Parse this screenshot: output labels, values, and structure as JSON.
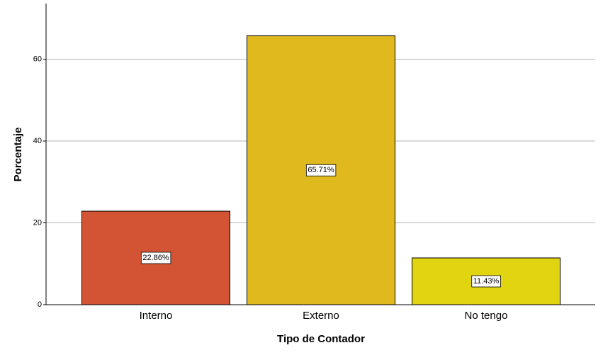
{
  "chart_data": {
    "type": "bar",
    "x_label": "Tipo de Contador",
    "y_label": "Porcentaje",
    "categories": [
      "Interno",
      "Externo",
      "No tengo"
    ],
    "values": [
      22.86,
      65.71,
      11.43
    ],
    "value_labels": [
      "22.86%",
      "65.71%",
      "11.43%"
    ],
    "colors": [
      "#d35434",
      "#e0b91f",
      "#e0d510"
    ],
    "ylim": [
      0,
      73.6
    ],
    "yticks": [
      0,
      20,
      40,
      60
    ],
    "grid": true
  }
}
